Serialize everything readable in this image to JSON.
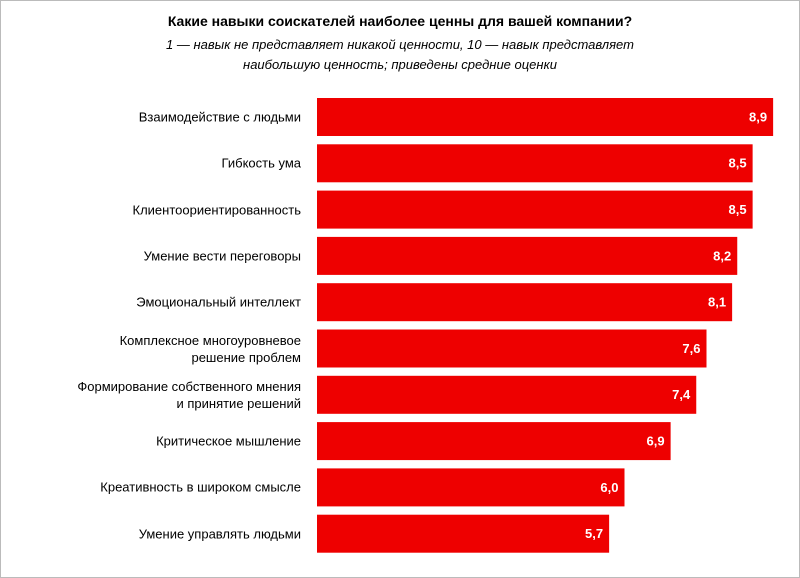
{
  "chart_data": {
    "type": "bar",
    "orientation": "horizontal",
    "title": "Какие навыки соискателей наиболее ценны для вашей компании?",
    "subtitle": "1 — навык не представляет никакой ценности, 10 — навык представляет\nнаибольшую ценность; приведены средние оценки",
    "categories": [
      "Взаимодействие с людьми",
      "Гибкость ума",
      "Клиентоориентированность",
      "Умение вести переговоры",
      "Эмоциональный интеллект",
      "Комплексное многоуровневое\nрешение проблем",
      "Формирование собственного мнения\nи принятие решений",
      "Критическое мышление",
      "Креативность в широком смысле",
      "Умение управлять людьми"
    ],
    "values": [
      8.9,
      8.5,
      8.5,
      8.2,
      8.1,
      7.6,
      7.4,
      6.9,
      6.0,
      5.7
    ],
    "value_labels": [
      "8,9",
      "8,5",
      "8,5",
      "8,2",
      "8,1",
      "7,6",
      "7,4",
      "6,9",
      "6,0",
      "5,7"
    ],
    "color": "#ee0000"
  }
}
